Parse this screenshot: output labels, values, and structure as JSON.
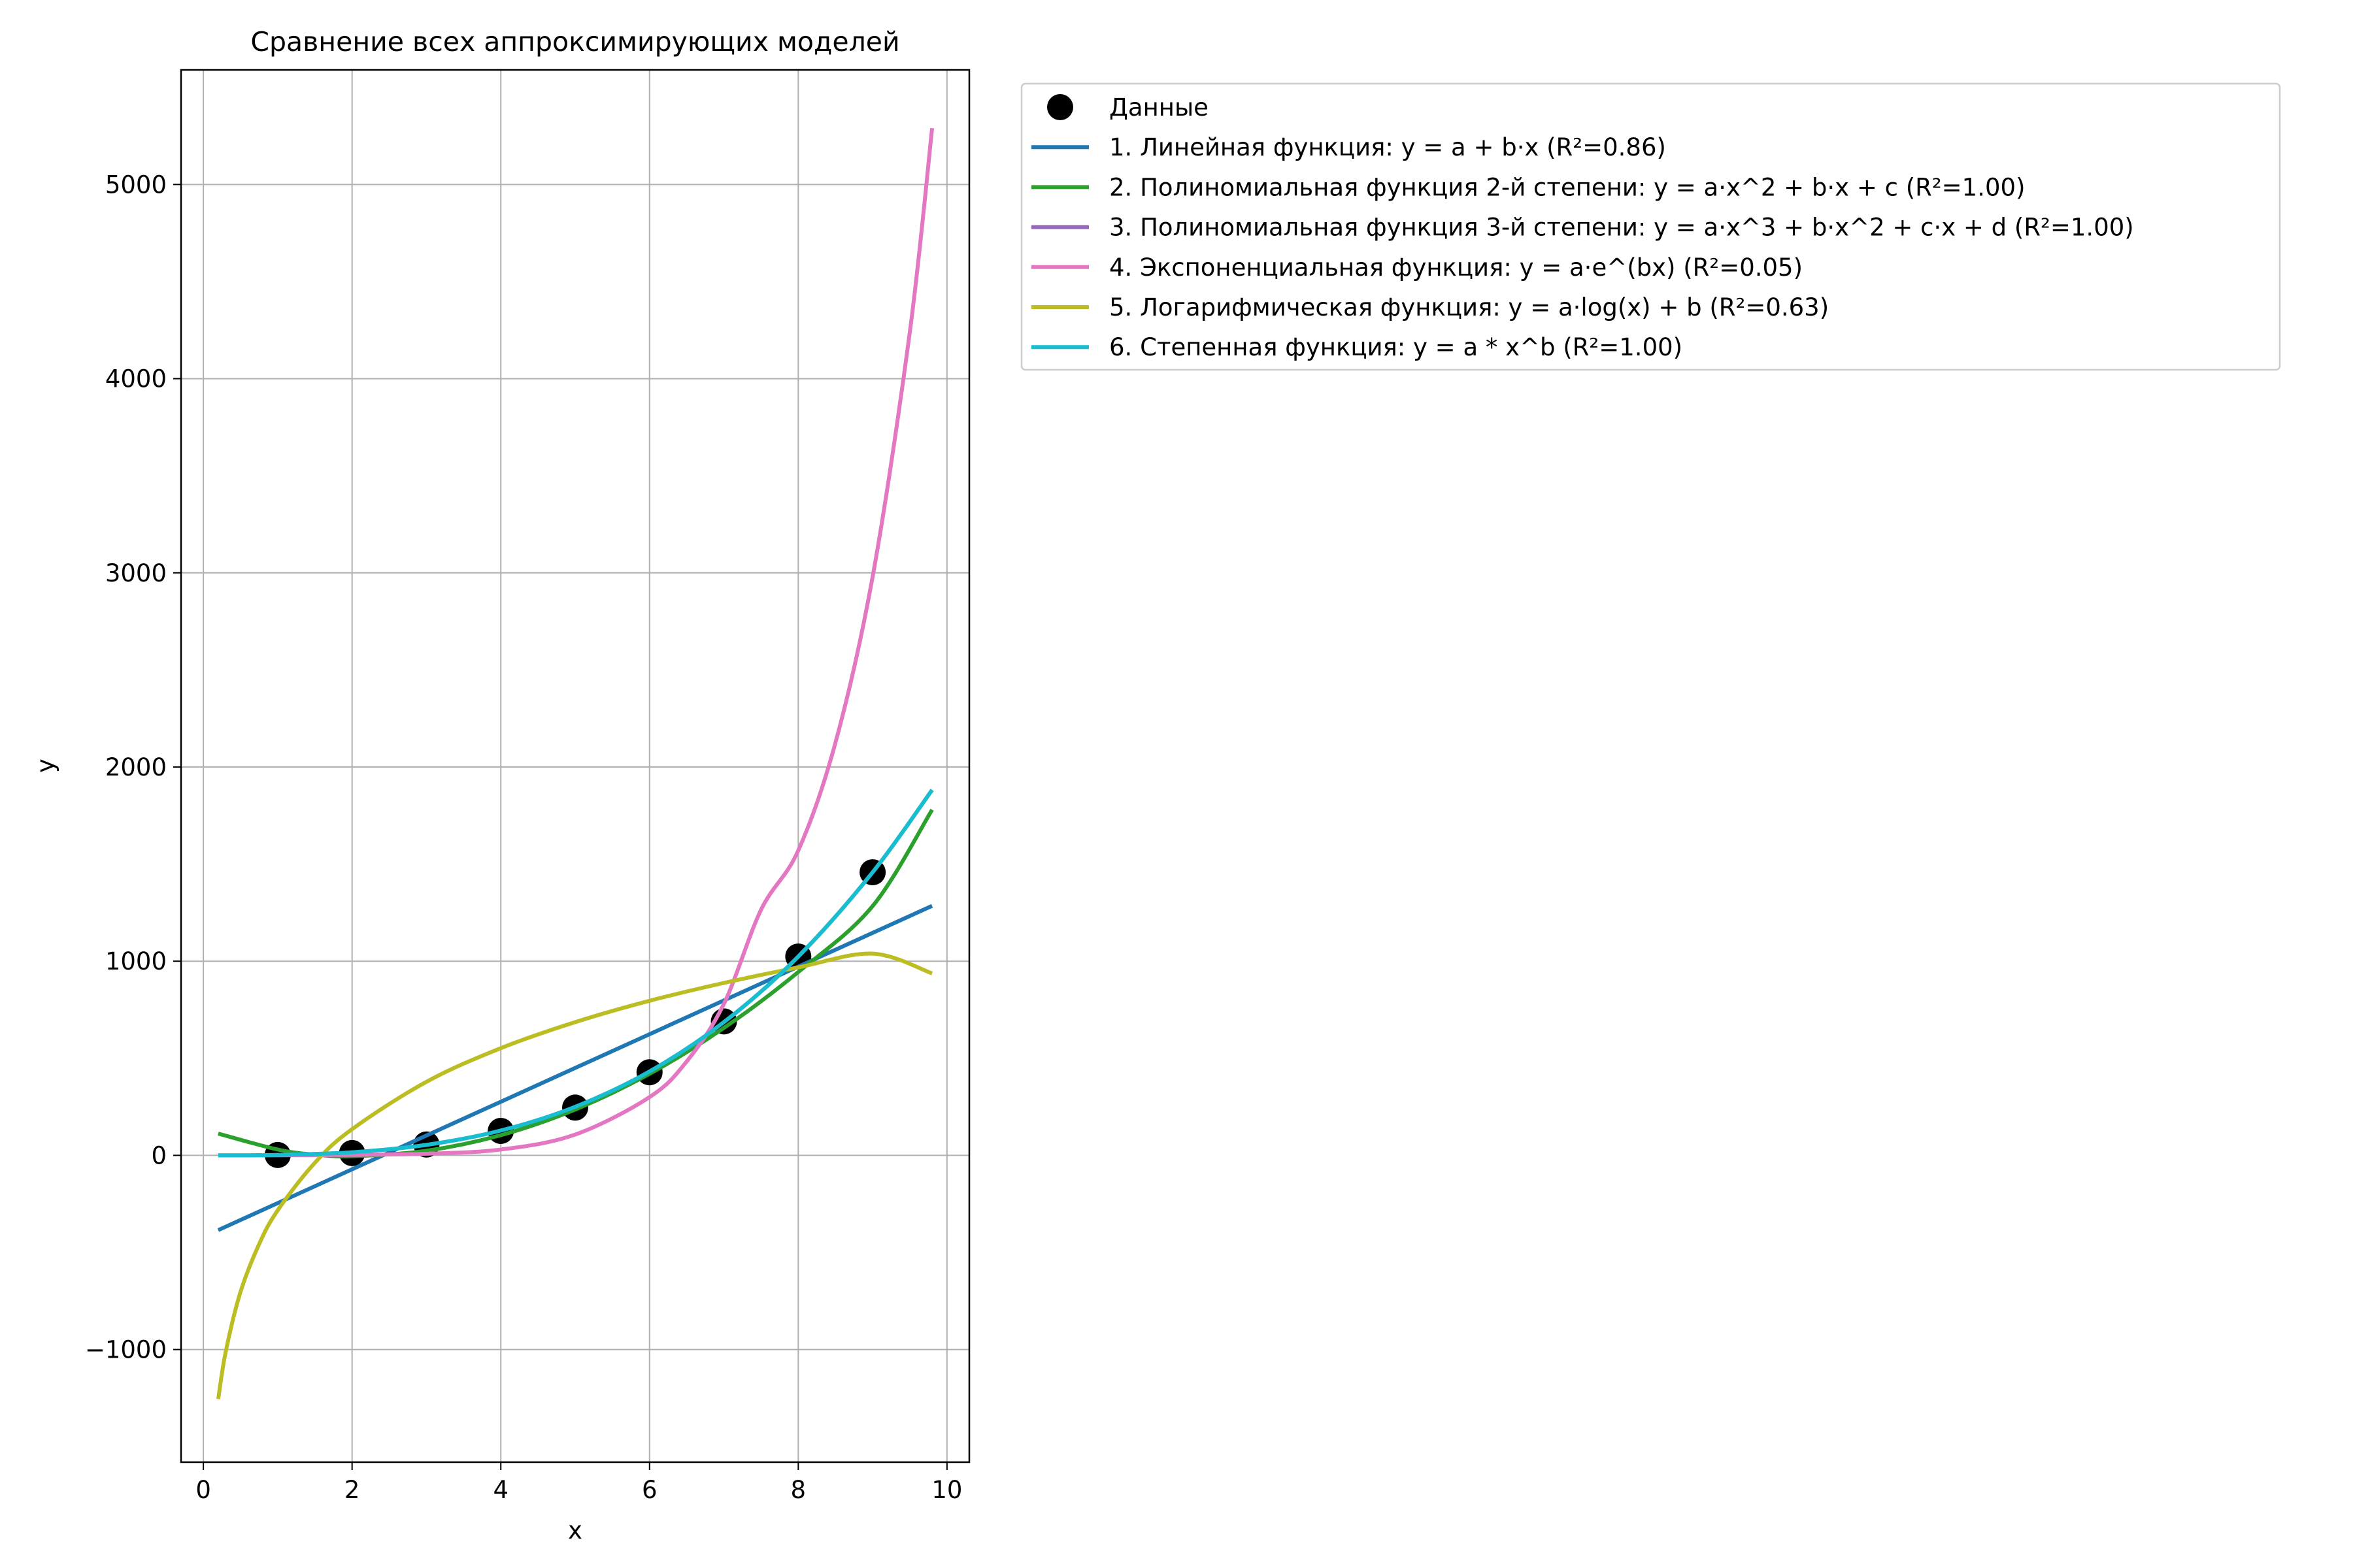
{
  "chart_data": {
    "type": "line",
    "title": "Сравнение всех аппроксимирующих моделей",
    "xlabel": "x",
    "ylabel": "y",
    "xlim": [
      -0.3,
      10.3
    ],
    "ylim": [
      -1580,
      5590
    ],
    "xticks": [
      0,
      2,
      4,
      6,
      8,
      10
    ],
    "yticks": [
      -1000,
      0,
      1000,
      2000,
      3000,
      4000,
      5000
    ],
    "xtick_labels": [
      "0",
      "2",
      "4",
      "6",
      "8",
      "10"
    ],
    "ytick_labels": [
      "−1000",
      "0",
      "1000",
      "2000",
      "3000",
      "4000",
      "5000"
    ],
    "grid": true,
    "legend_position": "outside-right-top",
    "series": [
      {
        "name": "Данные",
        "kind": "scatter",
        "color": "#000000",
        "x": [
          1,
          2,
          3,
          4,
          5,
          6,
          7,
          8,
          9
        ],
        "y": [
          2,
          12,
          56,
          126,
          246,
          428,
          690,
          1024,
          1458
        ]
      },
      {
        "name": "1. Линейная функция: y = a + b·x (R²=0.86)",
        "kind": "line",
        "color": "#1f77b4",
        "x": [
          0.2,
          9.8
        ],
        "y": [
          -385,
          1285
        ]
      },
      {
        "name": "2. Полиномиальная функция 2-й степени: y = a·x^2 + b·x + c (R²=1.00)",
        "kind": "line",
        "color": "#2ca02c",
        "x": [
          0.2,
          1,
          1.5,
          2,
          3,
          4,
          5,
          6,
          7,
          8,
          9,
          9.8
        ],
        "y": [
          112,
          30,
          4,
          -4,
          24,
          104,
          236,
          420,
          656,
          944,
          1284,
          1780
        ]
      },
      {
        "name": "3. Полиномиальная функция 3-й степени: y = a·x^3 + b·x^2 + c·x + d (R²=1.00)",
        "kind": "line",
        "color": "#9467bd",
        "x": [
          0.2,
          1,
          2,
          3,
          4,
          5,
          6,
          7,
          8,
          9,
          9.8
        ],
        "y": [
          0,
          2,
          16,
          54,
          128,
          250,
          432,
          686,
          1024,
          1458,
          1882
        ]
      },
      {
        "name": "4. Экспоненциальная функция: y = a·e^(bx) (R²=0.05)",
        "kind": "line",
        "color": "#e377c2",
        "x": [
          0.2,
          1,
          2,
          3,
          4,
          5,
          6,
          6.5,
          7,
          7.5,
          8,
          8.5,
          9,
          9.5,
          9.8
        ],
        "y": [
          0.3,
          0.7,
          2.4,
          8.5,
          30,
          107,
          300,
          484,
          780,
          1265,
          1570,
          2125,
          2980,
          4240,
          5290
        ]
      },
      {
        "name": "5. Логарифмическая функция: y = a·log(x) + b (R²=0.63)",
        "kind": "line",
        "color": "#bcbd22",
        "x": [
          0.2,
          0.3,
          0.5,
          0.75,
          1,
          1.5,
          2,
          3,
          4,
          5,
          6,
          7,
          8,
          9,
          9.8
        ],
        "y": [
          -1255,
          -1012,
          -703,
          -457,
          -283,
          -38,
          135,
          379,
          552,
          686,
          796,
          888,
          968,
          1039,
          937
        ]
      },
      {
        "name": "6. Степенная функция: y = a * x^b (R²=1.00)",
        "kind": "line",
        "color": "#17becf",
        "x": [
          0.2,
          1,
          2,
          3,
          4,
          5,
          6,
          7,
          8,
          9,
          9.8
        ],
        "y": [
          0,
          2,
          16,
          54,
          128,
          250,
          432,
          686,
          1024,
          1458,
          1882
        ]
      }
    ]
  }
}
